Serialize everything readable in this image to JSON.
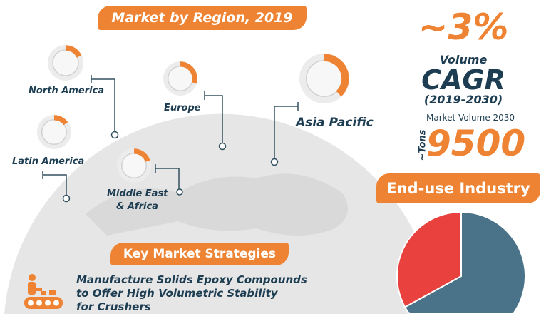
{
  "region_section": {
    "title": "Market by Region, 2019",
    "regions": [
      {
        "name": "North America",
        "share_fill": 0.18
      },
      {
        "name": "Latin America",
        "share_fill": 0.15
      },
      {
        "name": "Europe",
        "share_fill": 0.3
      },
      {
        "name": "Middle East",
        "name2": "& Africa",
        "share_fill": 0.2
      },
      {
        "name": "Asia Pacific",
        "share_fill": 0.38
      }
    ]
  },
  "stats": {
    "cagr_value": "~3%",
    "cagr_label1": "Volume",
    "cagr_label2": "CAGR",
    "cagr_period": "(2019-2030)",
    "volume_label": "Market Volume 2030",
    "volume_unit": "~Tons",
    "volume_value": "9500"
  },
  "end_use": {
    "title": "End-use Industry",
    "slices": [
      {
        "fraction": 0.67,
        "color": "#4a7389"
      },
      {
        "fraction": 0.33,
        "color": "#e8413e"
      }
    ]
  },
  "strategies": {
    "title": "Key Market Strategies",
    "icon": "conveyor-worker-icon",
    "lines": [
      "Manufacture Solids Epoxy Compounds",
      "to Offer High Volumetric Stability",
      "for Crushers"
    ]
  },
  "colors": {
    "accent": "#ee8433",
    "dark": "#1d3d52",
    "globe": "#e4e4e4"
  }
}
